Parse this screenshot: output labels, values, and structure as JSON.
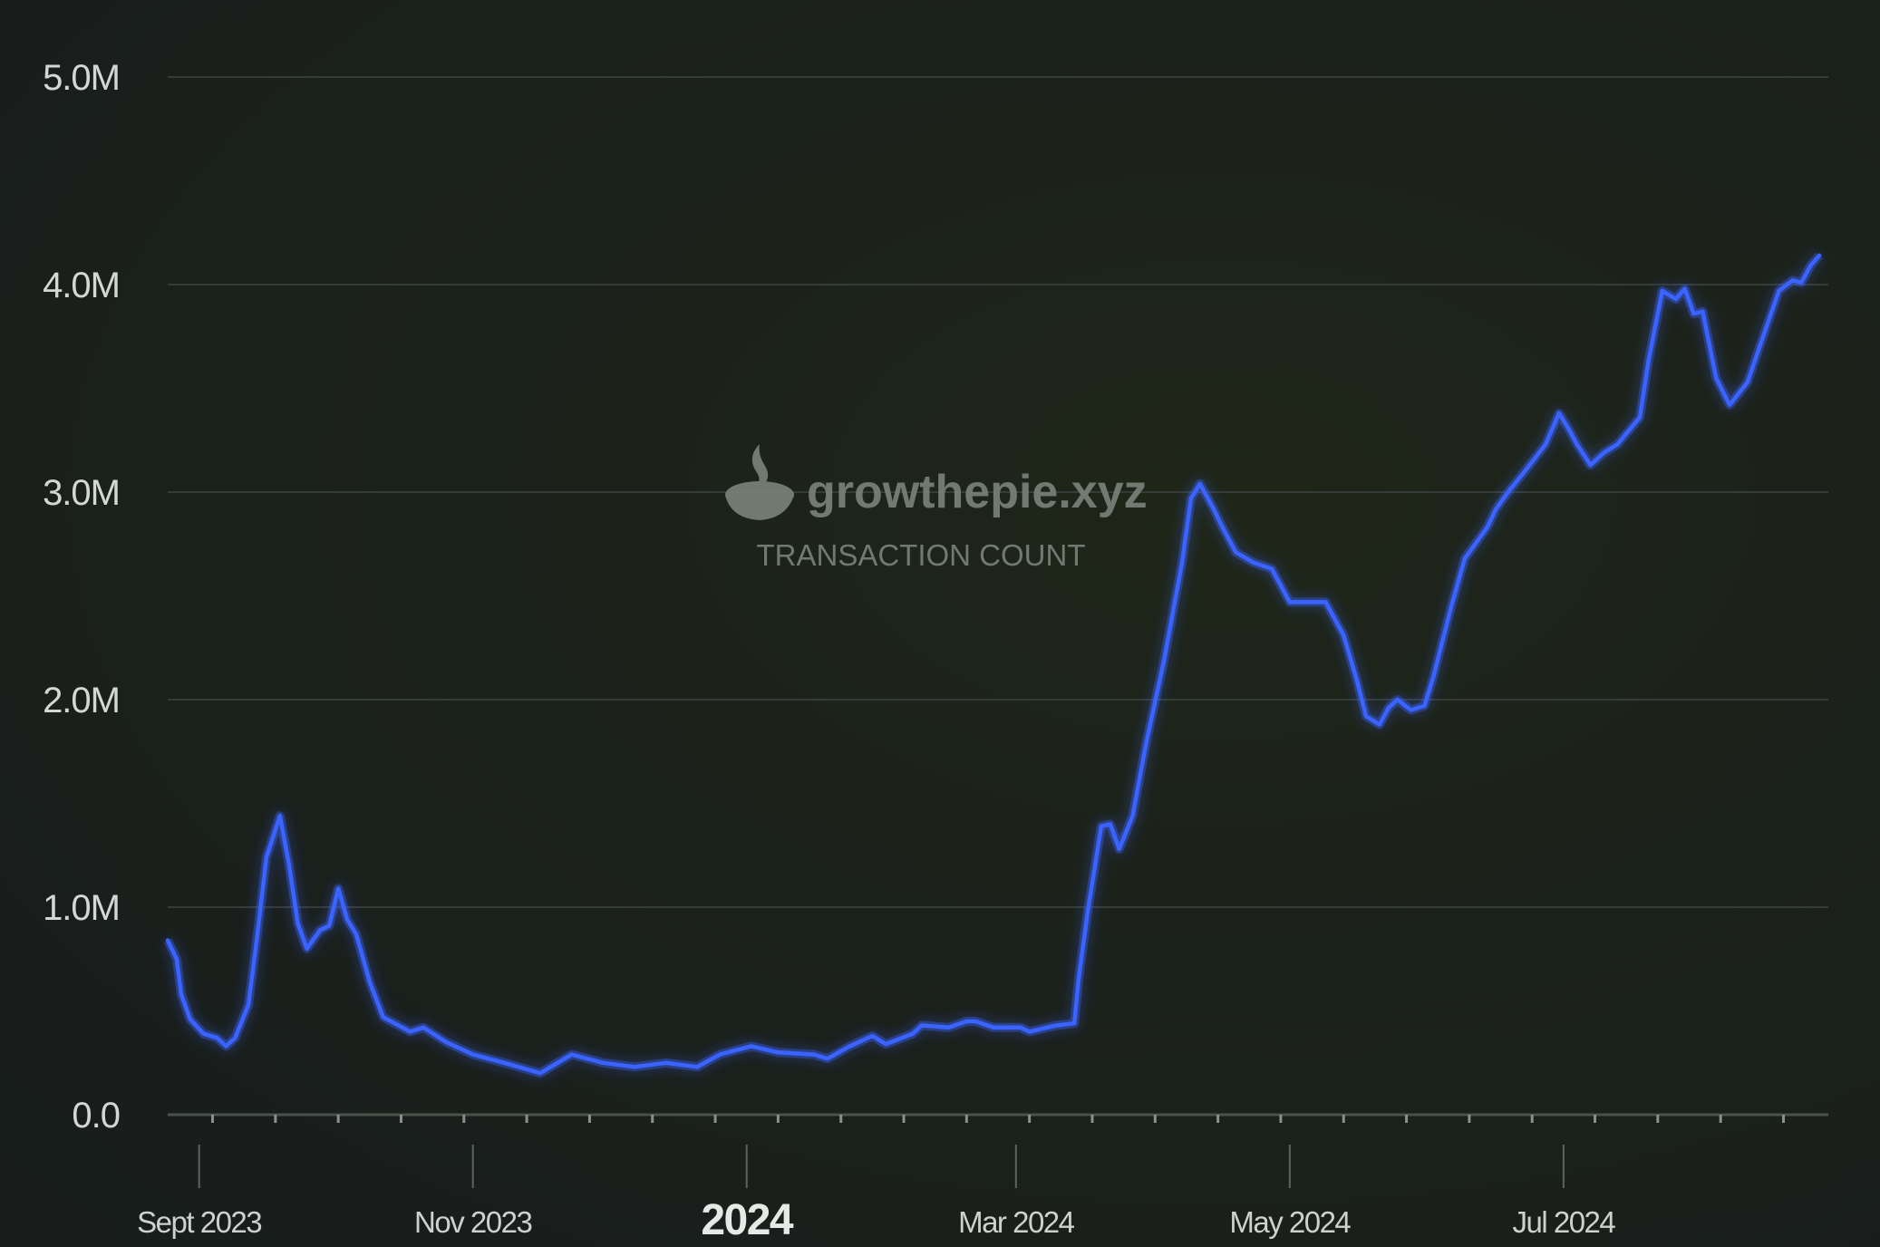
{
  "watermark": {
    "logo_text": "growthepie.xyz",
    "metric": "TRANSACTION COUNT"
  },
  "chart_data": {
    "type": "line",
    "title": "",
    "xlabel": "",
    "ylabel": "",
    "ylim": [
      0,
      5000000
    ],
    "yticks": [
      {
        "value": 0,
        "label": "0.0"
      },
      {
        "value": 1000000,
        "label": "1.0M"
      },
      {
        "value": 2000000,
        "label": "2.0M"
      },
      {
        "value": 3000000,
        "label": "3.0M"
      },
      {
        "value": 4000000,
        "label": "4.0M"
      },
      {
        "value": 5000000,
        "label": "5.0M"
      }
    ],
    "xlim": [
      "2023-08-25",
      "2024-08-29"
    ],
    "xticks": [
      {
        "date": "2023-09-01",
        "label": "Sept 2023",
        "major": false
      },
      {
        "date": "2023-11-01",
        "label": "Nov 2023",
        "major": false
      },
      {
        "date": "2024-01-01",
        "label": "2024",
        "major": true
      },
      {
        "date": "2024-03-01",
        "label": "Mar 2024",
        "major": false
      },
      {
        "date": "2024-05-01",
        "label": "May 2024",
        "major": false
      },
      {
        "date": "2024-07-01",
        "label": "Jul 2024",
        "major": false
      }
    ],
    "grid": true,
    "line_color": "#3a63ff",
    "series": [
      {
        "points": [
          [
            "2023-08-25",
            0.84
          ],
          [
            "2023-08-27",
            0.75
          ],
          [
            "2023-08-28",
            0.58
          ],
          [
            "2023-08-30",
            0.46
          ],
          [
            "2023-09-02",
            0.39
          ],
          [
            "2023-09-05",
            0.37
          ],
          [
            "2023-09-07",
            0.33
          ],
          [
            "2023-09-09",
            0.37
          ],
          [
            "2023-09-12",
            0.53
          ],
          [
            "2023-09-14",
            0.87
          ],
          [
            "2023-09-16",
            1.24
          ],
          [
            "2023-09-19",
            1.44
          ],
          [
            "2023-09-21",
            1.21
          ],
          [
            "2023-09-23",
            0.92
          ],
          [
            "2023-09-25",
            0.8
          ],
          [
            "2023-09-28",
            0.89
          ],
          [
            "2023-09-30",
            0.91
          ],
          [
            "2023-10-02",
            1.09
          ],
          [
            "2023-10-04",
            0.94
          ],
          [
            "2023-10-06",
            0.87
          ],
          [
            "2023-10-09",
            0.64
          ],
          [
            "2023-10-12",
            0.47
          ],
          [
            "2023-10-18",
            0.4
          ],
          [
            "2023-10-21",
            0.42
          ],
          [
            "2023-10-26",
            0.35
          ],
          [
            "2023-11-01",
            0.29
          ],
          [
            "2023-11-08",
            0.25
          ],
          [
            "2023-11-16",
            0.2
          ],
          [
            "2023-11-23",
            0.29
          ],
          [
            "2023-11-30",
            0.25
          ],
          [
            "2023-12-07",
            0.23
          ],
          [
            "2023-12-14",
            0.25
          ],
          [
            "2023-12-21",
            0.23
          ],
          [
            "2023-12-26",
            0.29
          ],
          [
            "2024-01-02",
            0.33
          ],
          [
            "2024-01-08",
            0.3
          ],
          [
            "2024-01-16",
            0.29
          ],
          [
            "2024-01-19",
            0.27
          ],
          [
            "2024-01-24",
            0.33
          ],
          [
            "2024-01-29",
            0.38
          ],
          [
            "2024-02-01",
            0.34
          ],
          [
            "2024-02-07",
            0.39
          ],
          [
            "2024-02-09",
            0.43
          ],
          [
            "2024-02-15",
            0.42
          ],
          [
            "2024-02-19",
            0.45
          ],
          [
            "2024-02-21",
            0.45
          ],
          [
            "2024-02-25",
            0.42
          ],
          [
            "2024-03-02",
            0.42
          ],
          [
            "2024-03-04",
            0.4
          ],
          [
            "2024-03-10",
            0.43
          ],
          [
            "2024-03-14",
            0.44
          ],
          [
            "2024-03-15",
            0.66
          ],
          [
            "2024-03-17",
            0.98
          ],
          [
            "2024-03-20",
            1.39
          ],
          [
            "2024-03-22",
            1.4
          ],
          [
            "2024-03-24",
            1.28
          ],
          [
            "2024-03-27",
            1.44
          ],
          [
            "2024-03-30",
            1.79
          ],
          [
            "2024-04-03",
            2.19
          ],
          [
            "2024-04-07",
            2.66
          ],
          [
            "2024-04-09",
            2.97
          ],
          [
            "2024-04-11",
            3.04
          ],
          [
            "2024-04-14",
            2.92
          ],
          [
            "2024-04-16",
            2.83
          ],
          [
            "2024-04-19",
            2.71
          ],
          [
            "2024-04-23",
            2.66
          ],
          [
            "2024-04-27",
            2.63
          ],
          [
            "2024-04-29",
            2.55
          ],
          [
            "2024-05-01",
            2.47
          ],
          [
            "2024-05-05",
            2.47
          ],
          [
            "2024-05-07",
            2.47
          ],
          [
            "2024-05-09",
            2.47
          ],
          [
            "2024-05-13",
            2.31
          ],
          [
            "2024-05-16",
            2.09
          ],
          [
            "2024-05-18",
            1.92
          ],
          [
            "2024-05-21",
            1.88
          ],
          [
            "2024-05-23",
            1.96
          ],
          [
            "2024-05-25",
            2.0
          ],
          [
            "2024-05-28",
            1.95
          ],
          [
            "2024-05-31",
            1.97
          ],
          [
            "2024-06-02",
            2.11
          ],
          [
            "2024-06-06",
            2.45
          ],
          [
            "2024-06-09",
            2.68
          ],
          [
            "2024-06-14",
            2.83
          ],
          [
            "2024-06-16",
            2.92
          ],
          [
            "2024-06-19",
            3.01
          ],
          [
            "2024-06-22",
            3.09
          ],
          [
            "2024-06-27",
            3.23
          ],
          [
            "2024-06-30",
            3.38
          ],
          [
            "2024-07-02",
            3.31
          ],
          [
            "2024-07-04",
            3.23
          ],
          [
            "2024-07-07",
            3.13
          ],
          [
            "2024-07-10",
            3.19
          ],
          [
            "2024-07-13",
            3.23
          ],
          [
            "2024-07-18",
            3.36
          ],
          [
            "2024-07-20",
            3.64
          ],
          [
            "2024-07-23",
            3.97
          ],
          [
            "2024-07-26",
            3.93
          ],
          [
            "2024-07-28",
            3.98
          ],
          [
            "2024-07-30",
            3.86
          ],
          [
            "2024-08-01",
            3.87
          ],
          [
            "2024-08-04",
            3.55
          ],
          [
            "2024-08-07",
            3.42
          ],
          [
            "2024-08-11",
            3.53
          ],
          [
            "2024-08-14",
            3.72
          ],
          [
            "2024-08-18",
            3.97
          ],
          [
            "2024-08-21",
            4.02
          ],
          [
            "2024-08-23",
            4.01
          ],
          [
            "2024-08-25",
            4.09
          ],
          [
            "2024-08-27",
            4.14
          ]
        ],
        "unit": "millions"
      }
    ]
  }
}
